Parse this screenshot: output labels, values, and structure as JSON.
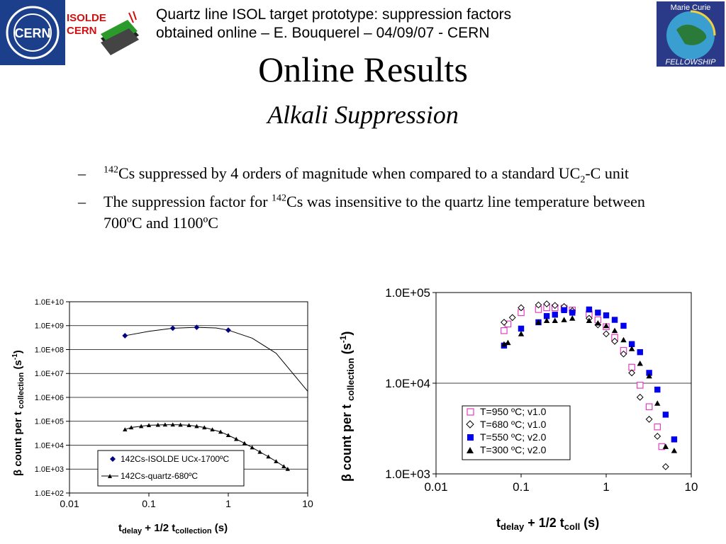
{
  "header": {
    "cern_logo_text": "CERN",
    "isolde_logo_line1": "ISOLDE",
    "isolde_logo_line2": "CERN",
    "title_line1": "Quartz line ISOL target prototype: suppression factors",
    "title_line2": "obtained online – E. Bouquerel – 04/09/07 - CERN",
    "marie_curie_logo_top": "Marie Curie",
    "marie_curie_logo_bottom": "FELLOWSHIP"
  },
  "slide": {
    "title": "Online Results",
    "subtitle": "Alkali Suppression",
    "bullets": [
      {
        "dash": "–",
        "sup": "142",
        "text_a": "Cs suppressed by 4 orders of magnitude when compared to a standard UC",
        "sub": "2",
        "text_b": "-C unit"
      },
      {
        "dash": "–",
        "text_a": "The suppression factor for ",
        "sup": "142",
        "text_b": "Cs was insensitive to the quartz line temperature between 700ºC and 1100ºC"
      }
    ]
  },
  "colors": {
    "blue_marker": "#000080",
    "magenta_marker": "#e040c0",
    "solid_blue": "#0000ee"
  },
  "chart_data": [
    {
      "type": "line",
      "xscale": "log",
      "yscale": "log",
      "xlim": [
        0.01,
        10
      ],
      "ylim": [
        100,
        10000000000
      ],
      "x_ticks": [
        "0.01",
        "0.1",
        "1",
        "10"
      ],
      "y_ticks": [
        "1.0E+02",
        "1.0E+03",
        "1.0E+04",
        "1.0E+05",
        "1.0E+06",
        "1.0E+07",
        "1.0E+08",
        "1.0E+09",
        "1.0E+10"
      ],
      "xlabel": {
        "t": "t",
        "s1": "delay",
        "m": " + 1/2 t",
        "s2": "collection",
        "e": " (s)"
      },
      "ylabel": {
        "a": "β count per t ",
        "s": "collection",
        "b": " (s",
        "p": "-1",
        "c": ")"
      },
      "legend_position": "bottom-right",
      "grid": "horizontal",
      "series": [
        {
          "name": "142Cs-ISOLDE UCx-1700ºC",
          "marker": "diamond",
          "x": [
            0.05,
            0.2,
            0.4,
            1.0
          ],
          "y": [
            380000000,
            780000000,
            850000000,
            650000000
          ],
          "fit_x": [
            0.05,
            0.1,
            0.2,
            0.4,
            0.7,
            1.0,
            2.0,
            4.0,
            10
          ],
          "fit_y": [
            380000000,
            580000000,
            780000000,
            850000000,
            800000000,
            650000000,
            300000000,
            70000000,
            1800000
          ]
        },
        {
          "name": "142Cs-quartz-680ºC",
          "marker": "triangle",
          "x": [
            0.05,
            0.06,
            0.08,
            0.1,
            0.13,
            0.16,
            0.2,
            0.25,
            0.32,
            0.4,
            0.5,
            0.63,
            0.8,
            1.0,
            1.26,
            1.6,
            2.0,
            2.5,
            3.2,
            4.0,
            5.0,
            5.6
          ],
          "y": [
            45000,
            55000,
            62000,
            68000,
            70000,
            72000,
            72000,
            71000,
            68000,
            62000,
            55000,
            45000,
            36000,
            26000,
            18000,
            12000,
            8000,
            5200,
            3300,
            2100,
            1300,
            1000
          ]
        }
      ]
    },
    {
      "type": "scatter",
      "xscale": "log",
      "yscale": "log",
      "xlim": [
        0.01,
        10
      ],
      "ylim": [
        1000,
        100000
      ],
      "x_ticks": [
        "0.01",
        "0.1",
        "1",
        "10"
      ],
      "y_ticks": [
        "1.0E+03",
        "1.0E+04",
        "1.0E+05"
      ],
      "xlabel": {
        "t": "t",
        "s1": "delay",
        "m": " + 1/2 t",
        "s2": "coll",
        "e": " (s)"
      },
      "ylabel": {
        "a": "β count per t ",
        "s": "collection",
        "b": " (s",
        "p": "-1",
        "c": ")"
      },
      "legend_position": "bottom-center",
      "grid": "horizontal",
      "series": [
        {
          "name": "T=950 ºC; v1.0",
          "marker": "open-square",
          "x": [
            0.063,
            0.07,
            0.1,
            0.16,
            0.2,
            0.25,
            0.32,
            0.4,
            0.63,
            0.8,
            1.0,
            1.26,
            1.6,
            2.0,
            2.5,
            3.2,
            4.0,
            4.5
          ],
          "y": [
            38000,
            45000,
            60000,
            65000,
            68000,
            68000,
            67000,
            64000,
            58000,
            50000,
            42000,
            32000,
            23000,
            15000,
            9500,
            5500,
            3300,
            2000
          ]
        },
        {
          "name": "T=680 ºC; v1.0",
          "marker": "open-diamond",
          "x": [
            0.063,
            0.079,
            0.1,
            0.16,
            0.2,
            0.25,
            0.32,
            0.4,
            0.63,
            0.8,
            1.0,
            1.26,
            1.6,
            2.0,
            2.5,
            3.2,
            4.0,
            5.0
          ],
          "y": [
            47000,
            53000,
            68000,
            73000,
            75000,
            72000,
            70000,
            63000,
            52000,
            44000,
            35000,
            29000,
            21000,
            13000,
            7000,
            4000,
            2600,
            1200
          ]
        },
        {
          "name": "T=550 ºC; v2.0",
          "marker": "filled-square",
          "x": [
            0.063,
            0.1,
            0.16,
            0.2,
            0.25,
            0.32,
            0.4,
            0.63,
            0.8,
            1.0,
            1.26,
            1.6,
            2.0,
            2.5,
            3.2,
            4.0,
            5.0,
            6.3
          ],
          "y": [
            26000,
            40000,
            47000,
            55000,
            57000,
            64000,
            60000,
            65000,
            60000,
            56000,
            50000,
            43000,
            27000,
            22000,
            13000,
            8500,
            4500,
            2400
          ]
        },
        {
          "name": "T=300 ºC; v2.0",
          "marker": "filled-triangle",
          "x": [
            0.063,
            0.07,
            0.1,
            0.16,
            0.2,
            0.25,
            0.32,
            0.4,
            0.63,
            0.8,
            1.0,
            1.26,
            1.6,
            2.0,
            2.5,
            3.2,
            4.0,
            5.0,
            6.3
          ],
          "y": [
            27000,
            28000,
            35000,
            47000,
            49000,
            49000,
            50000,
            52000,
            49000,
            46000,
            43000,
            38000,
            30000,
            24000,
            16500,
            12000,
            6000,
            2000,
            1800
          ]
        }
      ]
    }
  ]
}
